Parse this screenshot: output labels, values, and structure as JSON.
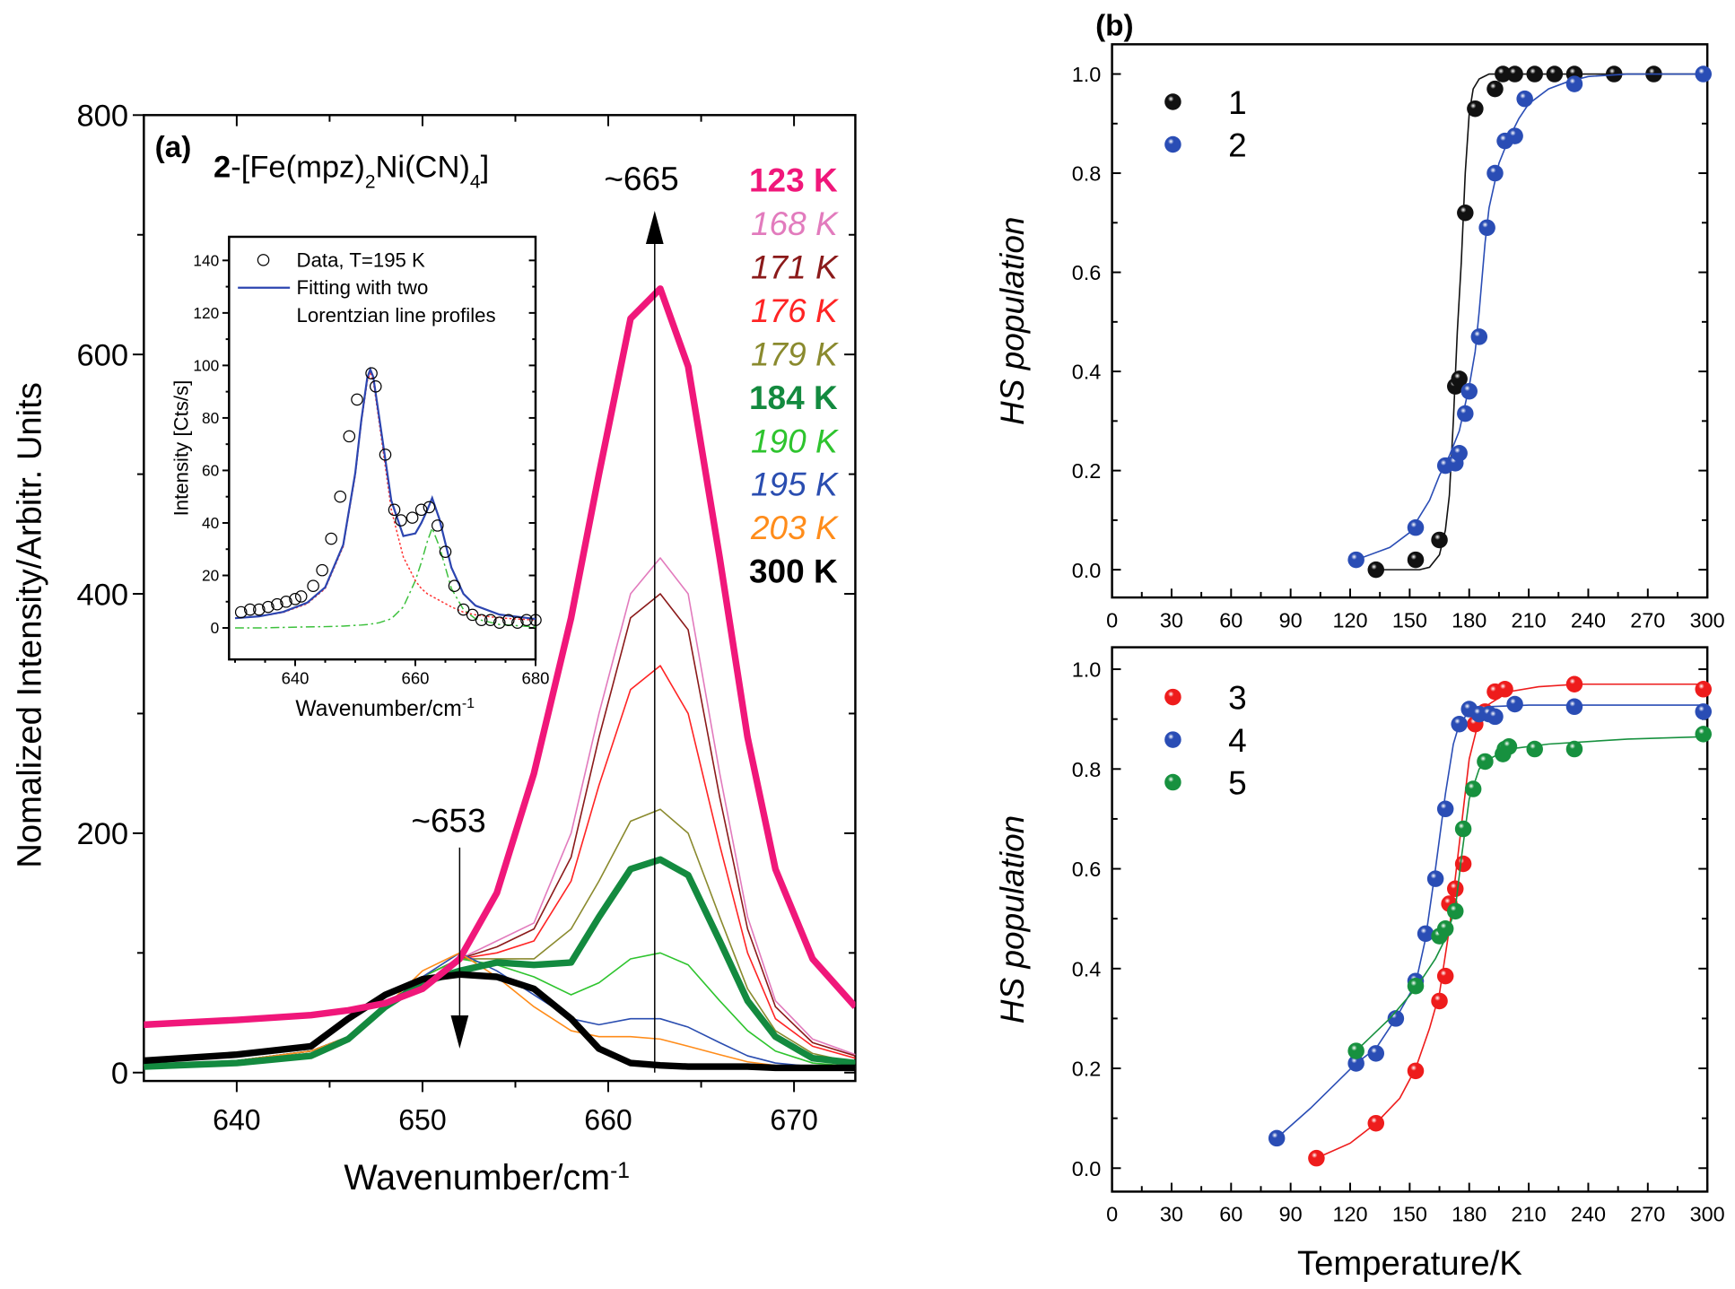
{
  "chart_data": [
    {
      "panel_label": "(a)",
      "type": "line",
      "title_parts": [
        {
          "t": "2",
          "bold": true
        },
        {
          "t": "-[Fe(mpz)"
        },
        {
          "t": "2",
          "sub": true
        },
        {
          "t": "Ni(CN)"
        },
        {
          "t": "4",
          "sub": true
        },
        {
          "t": "]"
        }
      ],
      "xlabel": "Wavenumber/cm",
      "xlabel_sup": "-1",
      "ylabel": "Nomalized Intensity/Arbitr. Units",
      "xlim": [
        635,
        673.3
      ],
      "ylim": [
        -7,
        800
      ],
      "x_ticks": [
        640,
        650,
        660,
        670
      ],
      "y_ticks": [
        0,
        200,
        400,
        600,
        800
      ],
      "grid": false,
      "legend_placement": "top-right",
      "x": [
        635,
        640,
        644,
        646,
        648,
        650,
        652,
        654,
        656,
        658,
        659.5,
        661.2,
        662.8,
        664.3,
        666,
        667.5,
        669,
        671,
        673.3
      ],
      "series": [
        {
          "name": "123 K",
          "color": "#f0177a",
          "bold": true,
          "values": [
            40,
            44,
            48,
            52,
            58,
            70,
            95,
            150,
            250,
            380,
            500,
            630,
            655,
            590,
            430,
            280,
            170,
            95,
            55
          ]
        },
        {
          "name": "168 K",
          "color": "#e27bbd",
          "bold": false,
          "values": [
            6,
            10,
            18,
            30,
            55,
            80,
            95,
            110,
            125,
            200,
            300,
            400,
            430,
            400,
            250,
            130,
            60,
            28,
            15
          ]
        },
        {
          "name": "171 K",
          "color": "#8b1a1a",
          "bold": false,
          "values": [
            6,
            10,
            18,
            30,
            55,
            80,
            95,
            105,
            120,
            180,
            280,
            380,
            400,
            370,
            230,
            120,
            55,
            25,
            14
          ]
        },
        {
          "name": "176 K",
          "color": "#ff2424",
          "bold": false,
          "values": [
            6,
            10,
            18,
            30,
            55,
            80,
            95,
            100,
            110,
            160,
            240,
            320,
            340,
            300,
            190,
            100,
            45,
            22,
            12
          ]
        },
        {
          "name": "179 K",
          "color": "#8a8a2e",
          "bold": false,
          "values": [
            6,
            10,
            18,
            30,
            55,
            80,
            95,
            95,
            95,
            120,
            160,
            210,
            220,
            200,
            130,
            70,
            35,
            16,
            8
          ]
        },
        {
          "name": "184 K",
          "color": "#138a3f",
          "bold": true,
          "values": [
            5,
            8,
            14,
            28,
            55,
            75,
            85,
            92,
            90,
            92,
            130,
            170,
            178,
            165,
            110,
            60,
            30,
            12,
            8
          ]
        },
        {
          "name": "190 K",
          "color": "#2ec42e",
          "bold": false,
          "values": [
            6,
            10,
            18,
            30,
            55,
            80,
            95,
            90,
            80,
            65,
            75,
            95,
            100,
            90,
            60,
            35,
            18,
            8,
            5
          ]
        },
        {
          "name": "195 K",
          "color": "#2a4db0",
          "bold": false,
          "values": [
            6,
            10,
            18,
            30,
            55,
            80,
            100,
            85,
            65,
            45,
            40,
            45,
            45,
            38,
            25,
            14,
            8,
            5,
            4
          ]
        },
        {
          "name": "203 K",
          "color": "#ff8c1a",
          "bold": false,
          "values": [
            6,
            10,
            18,
            30,
            55,
            85,
            100,
            80,
            55,
            35,
            30,
            30,
            28,
            22,
            15,
            9,
            6,
            4,
            3
          ]
        },
        {
          "name": "300 K",
          "color": "#000000",
          "bold": true,
          "values": [
            10,
            15,
            22,
            45,
            65,
            78,
            82,
            80,
            70,
            45,
            20,
            8,
            6,
            5,
            5,
            5,
            4,
            4,
            4
          ]
        }
      ],
      "annotations": [
        {
          "text": "~665",
          "x": 662.5,
          "arrow": "up",
          "from": 0,
          "to": 720
        },
        {
          "text": "~653",
          "x": 652,
          "arrow": "down",
          "from": 188,
          "to": 20
        }
      ]
    },
    {
      "panel_label": "",
      "type": "scatter",
      "xlabel": "Wavenumber/cm",
      "xlabel_sup": "-1",
      "ylabel": "Intensity [Cts/s]",
      "xlim": [
        629,
        680
      ],
      "ylim": [
        -12,
        149
      ],
      "x_ticks": [
        640,
        660,
        680
      ],
      "y_ticks": [
        0,
        20,
        40,
        60,
        80,
        100,
        120,
        140
      ],
      "legend": [
        "Data, T=195 K",
        "Fitting with two",
        "Lorentzian line profiles"
      ],
      "data_points": {
        "name": "Data, T=195 K",
        "x": [
          631,
          632.5,
          634,
          635.5,
          637,
          638.5,
          640,
          641,
          643,
          644.5,
          646,
          647.5,
          649,
          650.3,
          652.7,
          653.4,
          655,
          656.5,
          657.6,
          659.5,
          661,
          662.3,
          663.7,
          665,
          666.5,
          668,
          669.5,
          671,
          672.5,
          674,
          675.5,
          677,
          678.5,
          680
        ],
        "y": [
          6,
          7,
          7,
          8,
          9,
          10,
          11,
          12,
          16,
          22,
          34,
          50,
          73,
          87,
          97,
          92,
          66,
          45,
          41,
          42,
          45,
          46,
          39,
          29,
          16,
          7,
          5,
          3,
          3,
          2,
          3,
          2,
          3,
          3
        ]
      },
      "fit_x": [
        630,
        634,
        638,
        642,
        645,
        648,
        650,
        651,
        652,
        652.5,
        653,
        654,
        656,
        658,
        660,
        661,
        662,
        662.8,
        664,
        666,
        668,
        670,
        674,
        680
      ],
      "fits": [
        {
          "name": "Fitting with two Lorentzian line profiles",
          "color": "#2c45b0",
          "style": "solid",
          "values": [
            3.7,
            4.4,
            6.1,
            9.6,
            15.5,
            31.7,
            59,
            79,
            95.3,
            98.5,
            95.6,
            80,
            48.5,
            35,
            36,
            40,
            45,
            49.5,
            41.5,
            23,
            13,
            8.5,
            5.1,
            3.4
          ]
        },
        {
          "color": "#ff3030",
          "style": "dotted",
          "values": [
            3.7,
            4.4,
            5.9,
            9.2,
            15,
            31,
            58,
            78,
            94,
            97,
            94,
            78,
            45,
            27,
            18,
            15,
            13,
            12,
            10.5,
            8,
            6,
            5,
            3.8,
            3
          ]
        },
        {
          "color": "#3cc03c",
          "style": "dash-dot",
          "values": [
            0,
            0,
            0.2,
            0.4,
            0.5,
            0.7,
            1,
            1.1,
            1.3,
            1.5,
            1.6,
            2,
            3.5,
            8,
            18,
            25,
            33,
            38,
            31,
            15,
            7,
            3.5,
            1.3,
            0.4
          ]
        }
      ]
    },
    {
      "panel_label": "(b)",
      "type": "scatter",
      "xlabel": "",
      "ylabel": "HS population",
      "xlim": [
        0,
        300
      ],
      "ylim": [
        -0.056,
        1.06
      ],
      "x_ticks": [
        0,
        30,
        60,
        90,
        120,
        150,
        180,
        210,
        240,
        270,
        300
      ],
      "y_ticks": [
        0.0,
        0.2,
        0.4,
        0.6,
        0.8,
        1.0
      ],
      "legend_placement": "top-left",
      "series": [
        {
          "name": "1",
          "color": "#111111",
          "x": [
            133,
            153,
            165,
            173,
            175,
            178,
            183,
            193,
            197,
            203,
            213,
            223,
            233,
            253,
            273
          ],
          "y": [
            0,
            0.02,
            0.06,
            0.37,
            0.385,
            0.72,
            0.93,
            0.97,
            1,
            1,
            1,
            1,
            1,
            1,
            1
          ],
          "fit_x": [
            133,
            155,
            160,
            165,
            168,
            170,
            172,
            174,
            175,
            176,
            178,
            180,
            182,
            185,
            190,
            200,
            300
          ],
          "fit_y": [
            0,
            0,
            0.005,
            0.03,
            0.08,
            0.15,
            0.3,
            0.48,
            0.55,
            0.62,
            0.8,
            0.92,
            0.97,
            0.99,
            1,
            1,
            1
          ]
        },
        {
          "name": "2",
          "color": "#2a4db5",
          "x": [
            123,
            153,
            168,
            173,
            175,
            178,
            180,
            185,
            189,
            193,
            198,
            203,
            208,
            233,
            298
          ],
          "y": [
            0.02,
            0.085,
            0.21,
            0.215,
            0.235,
            0.315,
            0.36,
            0.47,
            0.69,
            0.8,
            0.865,
            0.875,
            0.95,
            0.98,
            1
          ],
          "fit_x": [
            123,
            140,
            150,
            160,
            165,
            170,
            175,
            180,
            183,
            185,
            188,
            190,
            195,
            200,
            205,
            210,
            220,
            230,
            240,
            260,
            300
          ],
          "fit_y": [
            0.02,
            0.045,
            0.075,
            0.14,
            0.19,
            0.23,
            0.28,
            0.37,
            0.44,
            0.52,
            0.66,
            0.73,
            0.82,
            0.87,
            0.91,
            0.94,
            0.97,
            0.985,
            0.995,
            1,
            1
          ]
        }
      ]
    },
    {
      "panel_label": "",
      "type": "scatter",
      "xlabel": "Temperature/K",
      "ylabel": "HS population",
      "xlim": [
        0,
        300
      ],
      "ylim": [
        -0.047,
        1.044
      ],
      "x_ticks": [
        0,
        30,
        60,
        90,
        120,
        150,
        180,
        210,
        240,
        270,
        300
      ],
      "y_ticks": [
        0.0,
        0.2,
        0.4,
        0.6,
        0.8,
        1.0
      ],
      "legend_placement": "top-left",
      "series": [
        {
          "name": "3",
          "color": "#ee1c1c",
          "x": [
            103,
            133,
            153,
            165,
            168,
            170,
            173,
            177,
            183,
            188,
            193,
            198,
            233,
            298
          ],
          "y": [
            0.02,
            0.09,
            0.195,
            0.335,
            0.385,
            0.53,
            0.56,
            0.61,
            0.89,
            0.915,
            0.955,
            0.96,
            0.97,
            0.96
          ],
          "fit_x": [
            103,
            120,
            133,
            145,
            153,
            160,
            165,
            170,
            175,
            180,
            185,
            190,
            200,
            215,
            235,
            300
          ],
          "fit_y": [
            0.02,
            0.05,
            0.09,
            0.14,
            0.2,
            0.28,
            0.35,
            0.48,
            0.65,
            0.82,
            0.9,
            0.93,
            0.955,
            0.965,
            0.97,
            0.97
          ]
        },
        {
          "name": "4",
          "color": "#2a4db5",
          "x": [
            83,
            123,
            133,
            143,
            153,
            158,
            163,
            168,
            175,
            180,
            185,
            190,
            193,
            203,
            233,
            298
          ],
          "y": [
            0.06,
            0.21,
            0.23,
            0.3,
            0.375,
            0.47,
            0.58,
            0.72,
            0.89,
            0.92,
            0.91,
            0.91,
            0.905,
            0.93,
            0.925,
            0.915
          ],
          "fit_x": [
            83,
            100,
            123,
            133,
            143,
            153,
            158,
            163,
            168,
            172,
            175,
            180,
            190,
            210,
            300
          ],
          "fit_y": [
            0.06,
            0.12,
            0.21,
            0.24,
            0.3,
            0.37,
            0.46,
            0.6,
            0.75,
            0.85,
            0.89,
            0.915,
            0.925,
            0.928,
            0.928
          ]
        },
        {
          "name": "5",
          "color": "#17913f",
          "x": [
            123,
            153,
            165,
            168,
            173,
            177,
            182,
            188,
            197,
            198,
            200,
            213,
            233,
            298
          ],
          "y": [
            0.235,
            0.365,
            0.465,
            0.48,
            0.515,
            0.68,
            0.76,
            0.815,
            0.83,
            0.84,
            0.845,
            0.84,
            0.84,
            0.87
          ],
          "fit_x": [
            123,
            140,
            153,
            163,
            168,
            173,
            176,
            180,
            185,
            190,
            200,
            220,
            260,
            300
          ],
          "fit_y": [
            0.235,
            0.3,
            0.36,
            0.42,
            0.46,
            0.52,
            0.62,
            0.74,
            0.8,
            0.82,
            0.84,
            0.85,
            0.86,
            0.865
          ]
        }
      ]
    }
  ]
}
